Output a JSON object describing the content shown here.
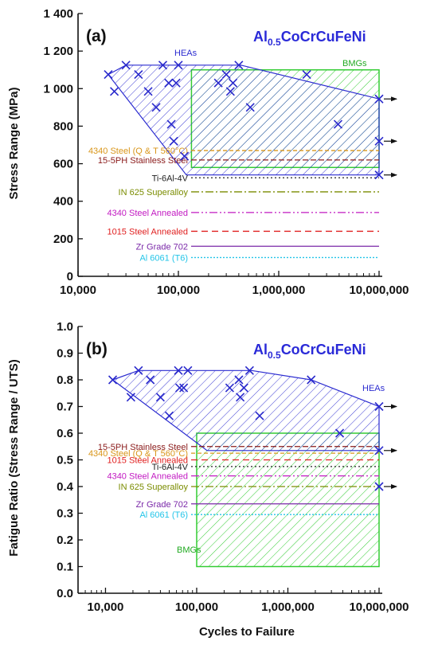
{
  "colors": {
    "hea": "#2b2bd0",
    "bmg": "#33cc33",
    "axis": "#111111",
    "marker": "#2a2acc"
  },
  "figure": {
    "xlabel": "Cycles to Failure",
    "panel_a": {
      "label": "(a)",
      "alloy_base": "Al",
      "alloy_sub": "0.5",
      "alloy_rest": "CoCrCuFeNi",
      "ylabel": "Stress Range (MPa)"
    },
    "panel_b": {
      "label": "(b)",
      "alloy_base": "Al",
      "alloy_sub": "0.5",
      "alloy_rest": "CoCrCuFeNi",
      "ylabel": "Fatigue Ratio (Stress Range / UTS)"
    }
  },
  "chart_data": [
    {
      "type": "scatter",
      "panel": "(a)",
      "title": "Al0.5CoCrCuFeNi",
      "xlabel": "",
      "ylabel": "Stress Range (MPa)",
      "xscale": "log",
      "xlim": [
        10000,
        10000000
      ],
      "ylim": [
        0,
        1400
      ],
      "xticks": [
        10000,
        100000,
        1000000,
        10000000
      ],
      "xtick_labels": [
        "10,000",
        "100,000",
        "1,000,000",
        "10,000,000"
      ],
      "yticks": [
        0,
        200,
        400,
        600,
        800,
        1000,
        1200,
        1400
      ],
      "ytick_labels": [
        "0",
        "200",
        "400",
        "600",
        "800",
        "1 000",
        "1 200",
        "1 400"
      ],
      "series": [
        {
          "name": "HEAs",
          "marker": "x",
          "points": [
            [
              20000,
              1075
            ],
            [
              23000,
              985
            ],
            [
              30000,
              1125
            ],
            [
              40000,
              1075
            ],
            [
              50000,
              985
            ],
            [
              60000,
              900
            ],
            [
              70000,
              1125
            ],
            [
              80000,
              1030
            ],
            [
              85000,
              810
            ],
            [
              90000,
              720
            ],
            [
              95000,
              1030
            ],
            [
              100000,
              1125
            ],
            [
              115000,
              640
            ],
            [
              250000,
              1030
            ],
            [
              300000,
              1075
            ],
            [
              330000,
              985
            ],
            [
              350000,
              1030
            ],
            [
              400000,
              1125
            ],
            [
              520000,
              900
            ],
            [
              1900000,
              1075
            ],
            [
              3900000,
              810
            ],
            [
              10000000,
              945
            ],
            [
              10000000,
              720
            ],
            [
              10000000,
              540
            ]
          ],
          "runouts": [
            [
              10000000,
              945
            ],
            [
              10000000,
              720
            ],
            [
              10000000,
              540
            ]
          ]
        }
      ],
      "regions": [
        {
          "name": "HEAs",
          "polygon": [
            [
              20000,
              1075
            ],
            [
              30000,
              1125
            ],
            [
              420000,
              1125
            ],
            [
              10000000,
              945
            ],
            [
              10000000,
              540
            ],
            [
              120000,
              540
            ],
            [
              20000,
              1075
            ]
          ]
        },
        {
          "name": "BMGs",
          "x": [
            135000,
            10000000
          ],
          "y": [
            580,
            1100
          ]
        }
      ],
      "reference_lines": [
        {
          "name": "4340 Steel (Q & T 560°C)",
          "value": 670,
          "color": "#d9961a",
          "dash": "5,3"
        },
        {
          "name": "15-5PH Stainless Steel",
          "value": 620,
          "color": "#8a1a1a",
          "dash": "7,3"
        },
        {
          "name": "Ti-6Al-4V",
          "value": 525,
          "color": "#222222",
          "dash": "2,3"
        },
        {
          "name": "IN 625 Superalloy",
          "value": 450,
          "color": "#7a8c00",
          "dash": "10,3,2,3"
        },
        {
          "name": "4340 Steel Annealed",
          "value": 340,
          "color": "#c21ac2",
          "dash": "10,3,2,3,2,3"
        },
        {
          "name": "1015 Steel Annealed",
          "value": 240,
          "color": "#e02020",
          "dash": "8,5"
        },
        {
          "name": "Zr Grade 702",
          "value": 160,
          "color": "#7a28a8",
          "dash": ""
        },
        {
          "name": "Al 6061 (T6)",
          "value": 100,
          "color": "#22c4e8",
          "dash": "2,2"
        }
      ]
    },
    {
      "type": "scatter",
      "panel": "(b)",
      "title": "Al0.5CoCrCuFeNi",
      "xlabel": "Cycles to Failure",
      "ylabel": "Fatigue Ratio (Stress Range / UTS)",
      "xscale": "log",
      "xlim": [
        5000,
        10000000
      ],
      "ylim": [
        0,
        1.0
      ],
      "xticks": [
        10000,
        100000,
        1000000,
        10000000
      ],
      "xtick_labels": [
        "10,000",
        "100,000",
        "1,000,000",
        "10,000,000"
      ],
      "yticks": [
        0,
        0.1,
        0.2,
        0.3,
        0.4,
        0.5,
        0.6,
        0.7,
        0.8,
        0.9,
        1.0
      ],
      "ytick_labels": [
        "0.0",
        "0.1",
        "0.2",
        "0.3",
        "0.4",
        "0.5",
        "0.6",
        "0.7",
        "0.8",
        "0.9",
        "1.0"
      ],
      "series": [
        {
          "name": "HEAs",
          "marker": "x",
          "points": [
            [
              12000,
              0.8
            ],
            [
              19000,
              0.735
            ],
            [
              23000,
              0.835
            ],
            [
              31000,
              0.8
            ],
            [
              40000,
              0.735
            ],
            [
              50000,
              0.665
            ],
            [
              63000,
              0.835
            ],
            [
              65000,
              0.77
            ],
            [
              72000,
              0.77
            ],
            [
              80000,
              0.835
            ],
            [
              230000,
              0.77
            ],
            [
              290000,
              0.8
            ],
            [
              300000,
              0.735
            ],
            [
              330000,
              0.77
            ],
            [
              380000,
              0.835
            ],
            [
              490000,
              0.665
            ],
            [
              1800000,
              0.8
            ],
            [
              3700000,
              0.6
            ],
            [
              10000000,
              0.7
            ],
            [
              10000000,
              0.535
            ],
            [
              10000000,
              0.4
            ]
          ],
          "runouts": [
            [
              10000000,
              0.7
            ],
            [
              10000000,
              0.535
            ],
            [
              10000000,
              0.4
            ]
          ]
        }
      ],
      "regions": [
        {
          "name": "HEAs",
          "polygon": [
            [
              12000,
              0.8
            ],
            [
              23000,
              0.835
            ],
            [
              400000,
              0.835
            ],
            [
              1800000,
              0.8
            ],
            [
              10000000,
              0.7
            ],
            [
              10000000,
              0.535
            ],
            [
              130000,
              0.535
            ],
            [
              12000,
              0.8
            ]
          ]
        },
        {
          "name": "BMGs",
          "x": [
            100000,
            10000000
          ],
          "y": [
            0.1,
            0.6
          ]
        }
      ],
      "reference_lines": [
        {
          "name": "15-5PH Stainless Steel",
          "value": 0.55,
          "color": "#8a1a1a",
          "dash": "7,3"
        },
        {
          "name": "4340 Steel (Q & T 560°C)",
          "value": 0.525,
          "color": "#d9961a",
          "dash": "5,3"
        },
        {
          "name": "1015 Steel Annealed",
          "value": 0.5,
          "color": "#e02020",
          "dash": "8,5"
        },
        {
          "name": "Ti-6Al-4V",
          "value": 0.475,
          "color": "#222222",
          "dash": "2,3"
        },
        {
          "name": "4340 Steel Annealed",
          "value": 0.44,
          "color": "#c21ac2",
          "dash": "10,3,2,3,2,3"
        },
        {
          "name": "IN 625 Superalloy",
          "value": 0.4,
          "color": "#7a8c00",
          "dash": "10,3,2,3"
        },
        {
          "name": "Zr Grade 702",
          "value": 0.335,
          "color": "#7a28a8",
          "dash": ""
        },
        {
          "name": "Al 6061 (T6)",
          "value": 0.295,
          "color": "#22c4e8",
          "dash": "2,2"
        }
      ]
    }
  ]
}
